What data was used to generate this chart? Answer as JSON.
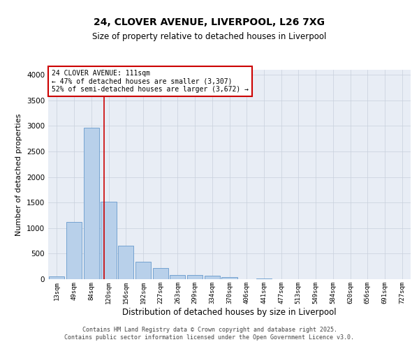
{
  "title1": "24, CLOVER AVENUE, LIVERPOOL, L26 7XG",
  "title2": "Size of property relative to detached houses in Liverpool",
  "xlabel": "Distribution of detached houses by size in Liverpool",
  "ylabel": "Number of detached properties",
  "bar_labels": [
    "13sqm",
    "49sqm",
    "84sqm",
    "120sqm",
    "156sqm",
    "192sqm",
    "227sqm",
    "263sqm",
    "299sqm",
    "334sqm",
    "370sqm",
    "406sqm",
    "441sqm",
    "477sqm",
    "513sqm",
    "549sqm",
    "584sqm",
    "620sqm",
    "656sqm",
    "691sqm",
    "727sqm"
  ],
  "bar_values": [
    55,
    1120,
    2970,
    1520,
    660,
    340,
    215,
    85,
    80,
    65,
    35,
    5,
    20,
    0,
    0,
    0,
    0,
    0,
    0,
    0,
    0
  ],
  "bar_color": "#b8d0ea",
  "bar_edge_color": "#6699cc",
  "vline_x": 2.72,
  "vline_color": "#cc0000",
  "annotation_text": "24 CLOVER AVENUE: 111sqm\n← 47% of detached houses are smaller (3,307)\n52% of semi-detached houses are larger (3,672) →",
  "annotation_box_facecolor": "#ffffff",
  "annotation_box_edgecolor": "#cc0000",
  "ylim": [
    0,
    4100
  ],
  "yticks": [
    0,
    500,
    1000,
    1500,
    2000,
    2500,
    3000,
    3500,
    4000
  ],
  "bg_color": "#e8edf5",
  "grid_color": "#c8d0dc",
  "footer_text": "Contains HM Land Registry data © Crown copyright and database right 2025.\nContains public sector information licensed under the Open Government Licence v3.0."
}
